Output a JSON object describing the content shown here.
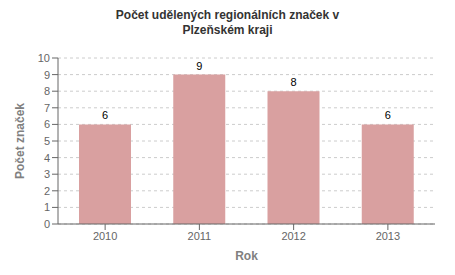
{
  "chart_data": {
    "type": "bar",
    "title": "Počet udělených regionálních značek v\nPlzeňském kraji",
    "xlabel": "Rok",
    "ylabel": "Počet značek",
    "categories": [
      "2010",
      "2011",
      "2012",
      "2013"
    ],
    "values": [
      6,
      9,
      8,
      6
    ],
    "color": "#d9a0a0",
    "ylim": [
      0,
      10
    ],
    "yticks": [
      0,
      1,
      2,
      3,
      4,
      5,
      6,
      7,
      8,
      9,
      10
    ],
    "grid": true,
    "data_labels": true
  }
}
